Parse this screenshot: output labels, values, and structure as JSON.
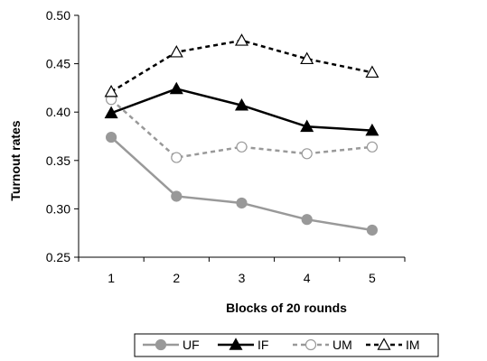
{
  "chart_data": {
    "type": "line",
    "title": "",
    "xlabel": "Blocks of 20 rounds",
    "ylabel": "Turnout rates",
    "x": [
      1,
      2,
      3,
      4,
      5
    ],
    "x_tick_labels": [
      "1",
      "2",
      "3",
      "4",
      "5"
    ],
    "y_tick_labels": [
      "0.25",
      "0.30",
      "0.35",
      "0.40",
      "0.45",
      "0.50"
    ],
    "ylim": [
      0.25,
      0.5
    ],
    "grid": false,
    "legend_position": "bottom",
    "series": [
      {
        "name": "UF",
        "values": [
          0.374,
          0.313,
          0.306,
          0.289,
          0.278
        ],
        "color": "#999999",
        "dash": "solid",
        "marker": "circle-filled"
      },
      {
        "name": "IF",
        "values": [
          0.399,
          0.424,
          0.407,
          0.385,
          0.381
        ],
        "color": "#000000",
        "dash": "solid",
        "marker": "triangle-filled"
      },
      {
        "name": "UM",
        "values": [
          0.413,
          0.353,
          0.364,
          0.357,
          0.364
        ],
        "color": "#999999",
        "dash": "dashed",
        "marker": "circle-open"
      },
      {
        "name": "IM",
        "values": [
          0.421,
          0.462,
          0.474,
          0.455,
          0.441
        ],
        "color": "#000000",
        "dash": "dashed",
        "marker": "triangle-open"
      }
    ]
  }
}
